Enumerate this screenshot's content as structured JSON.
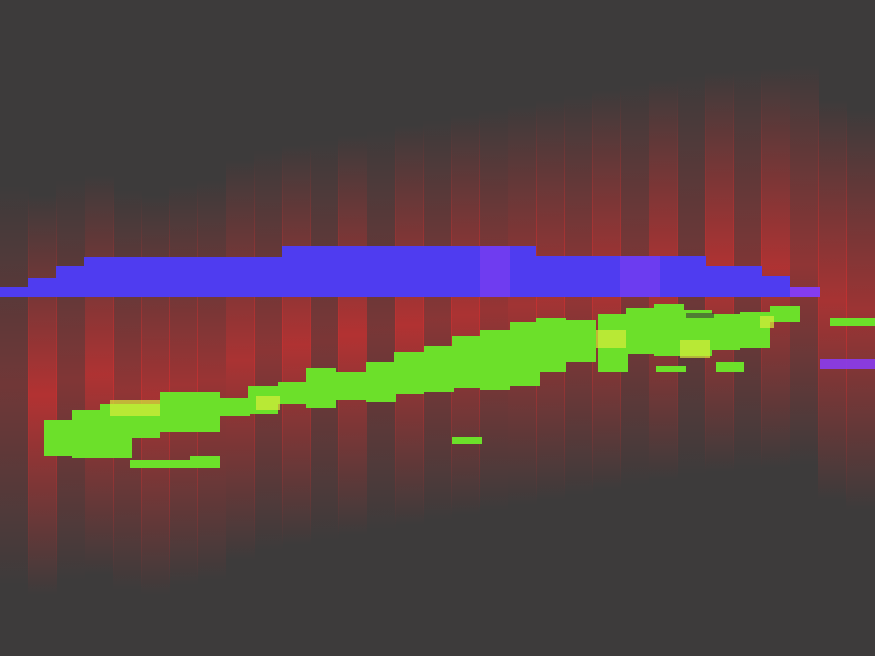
{
  "colors": {
    "background": "#3d3b3b",
    "red_signal": "#d03030",
    "blue_band": "#4f3cf0",
    "purple_band": "#8a3cf0",
    "green_band": "#6ce02a",
    "yellow_highlight": "#d8ec3a"
  }
}
